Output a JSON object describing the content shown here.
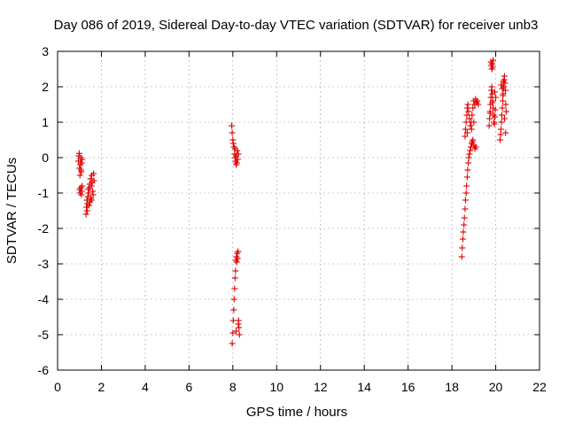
{
  "chart_data": {
    "type": "scatter",
    "title": "Day 086 of 2019, Sidereal Day-to-day VTEC variation (SDTVAR) for receiver unb3",
    "xlabel": "GPS time / hours",
    "ylabel": "SDTVAR / TECUs",
    "xlim": [
      0,
      22
    ],
    "ylim": [
      -6,
      3
    ],
    "xticks": [
      0,
      2,
      4,
      6,
      8,
      10,
      12,
      14,
      16,
      18,
      20,
      22
    ],
    "yticks": [
      -6,
      -5,
      -4,
      -3,
      -2,
      -1,
      0,
      1,
      2,
      3
    ],
    "grid": true,
    "marker": "plus",
    "color": "#e00000",
    "series": [
      {
        "name": "SDTVAR",
        "x": [
          0.95,
          0.97,
          0.99,
          1.0,
          1.02,
          1.04,
          1.05,
          1.07,
          1.08,
          1.1,
          1.12,
          1.0,
          1.03,
          1.06,
          1.09,
          1.1,
          1.12,
          1.3,
          1.32,
          1.34,
          1.36,
          1.38,
          1.4,
          1.42,
          1.44,
          1.46,
          1.48,
          1.5,
          1.52,
          1.54,
          1.56,
          1.58,
          1.6,
          1.62,
          1.64,
          1.66,
          1.35,
          1.45,
          1.55,
          7.95,
          7.97,
          8.0,
          8.02,
          8.05,
          8.08,
          8.1,
          8.12,
          8.15,
          8.18,
          8.2,
          8.22,
          8.25,
          8.1,
          8.15,
          7.97,
          8.0,
          8.02,
          8.04,
          8.06,
          8.08,
          8.1,
          8.12,
          8.14,
          8.16,
          8.18,
          8.2,
          8.22,
          8.24,
          8.26,
          8.28,
          8.3,
          8.15,
          8.25,
          18.45,
          18.47,
          18.5,
          18.52,
          18.55,
          18.57,
          18.6,
          18.62,
          18.65,
          18.67,
          18.7,
          18.72,
          18.75,
          18.77,
          18.8,
          18.83,
          18.86,
          18.9,
          18.93,
          18.96,
          19.0,
          19.05,
          19.1,
          18.6,
          18.62,
          18.65,
          18.68,
          18.7,
          18.73,
          18.76,
          18.8,
          18.84,
          18.88,
          18.92,
          18.96,
          19.0,
          19.04,
          19.08,
          19.12,
          19.16,
          19.2,
          18.7,
          18.9,
          19.0,
          19.7,
          19.72,
          19.74,
          19.76,
          19.78,
          19.8,
          19.82,
          19.84,
          19.86,
          19.88,
          19.9,
          19.92,
          19.94,
          19.96,
          19.98,
          20.0,
          19.75,
          19.85,
          19.95,
          19.78,
          19.8,
          19.82,
          19.84,
          19.86,
          19.88,
          20.2,
          20.22,
          20.24,
          20.26,
          20.28,
          20.3,
          20.32,
          20.34,
          20.36,
          20.38,
          20.4,
          20.42,
          20.44,
          20.46,
          20.48,
          20.3,
          20.35,
          20.4,
          20.45,
          20.25,
          20.33
        ],
        "y": [
          -0.1,
          0.05,
          0.12,
          -0.3,
          -0.5,
          -0.2,
          0.0,
          -0.35,
          -0.4,
          -0.15,
          -0.05,
          -0.9,
          -1.0,
          -0.85,
          -1.05,
          -0.95,
          -0.8,
          -1.6,
          -1.4,
          -1.2,
          -1.3,
          -1.1,
          -0.9,
          -1.0,
          -1.35,
          -0.75,
          -1.25,
          -0.6,
          -1.15,
          -0.8,
          -0.5,
          -0.7,
          -0.95,
          -1.05,
          -0.45,
          -0.65,
          -1.5,
          -0.85,
          -1.2,
          0.9,
          0.7,
          0.5,
          0.4,
          0.3,
          0.1,
          0.0,
          -0.1,
          0.05,
          -0.15,
          0.2,
          -0.05,
          0.1,
          0.25,
          -0.2,
          -5.25,
          -4.95,
          -4.6,
          -4.3,
          -4.0,
          -3.7,
          -3.4,
          -3.2,
          -2.9,
          -2.8,
          -2.95,
          -2.7,
          -2.85,
          -2.65,
          -4.6,
          -4.8,
          -5.0,
          -4.9,
          -4.7,
          -2.8,
          -2.55,
          -2.3,
          -2.1,
          -1.9,
          -1.7,
          -1.45,
          -1.2,
          -1.0,
          -0.8,
          -0.55,
          -0.35,
          -0.15,
          0.0,
          0.1,
          0.2,
          0.3,
          0.4,
          0.45,
          0.5,
          0.35,
          0.25,
          0.3,
          0.6,
          0.8,
          1.0,
          1.2,
          1.4,
          1.5,
          1.3,
          1.1,
          0.9,
          1.0,
          1.2,
          1.4,
          1.6,
          1.5,
          1.65,
          1.55,
          1.6,
          1.5,
          0.7,
          0.8,
          1.0,
          0.9,
          1.1,
          1.3,
          1.5,
          1.7,
          1.9,
          2.0,
          1.8,
          1.6,
          1.4,
          1.2,
          1.0,
          0.95,
          1.15,
          1.35,
          1.7,
          1.25,
          1.55,
          1.85,
          2.7,
          2.6,
          2.5,
          2.65,
          2.55,
          2.75,
          0.5,
          0.65,
          0.8,
          1.0,
          1.2,
          1.4,
          1.6,
          1.8,
          2.0,
          2.2,
          2.3,
          2.1,
          1.9,
          1.5,
          1.3,
          1.95,
          2.15,
          1.1,
          0.7,
          2.05,
          1.75
        ]
      }
    ]
  }
}
